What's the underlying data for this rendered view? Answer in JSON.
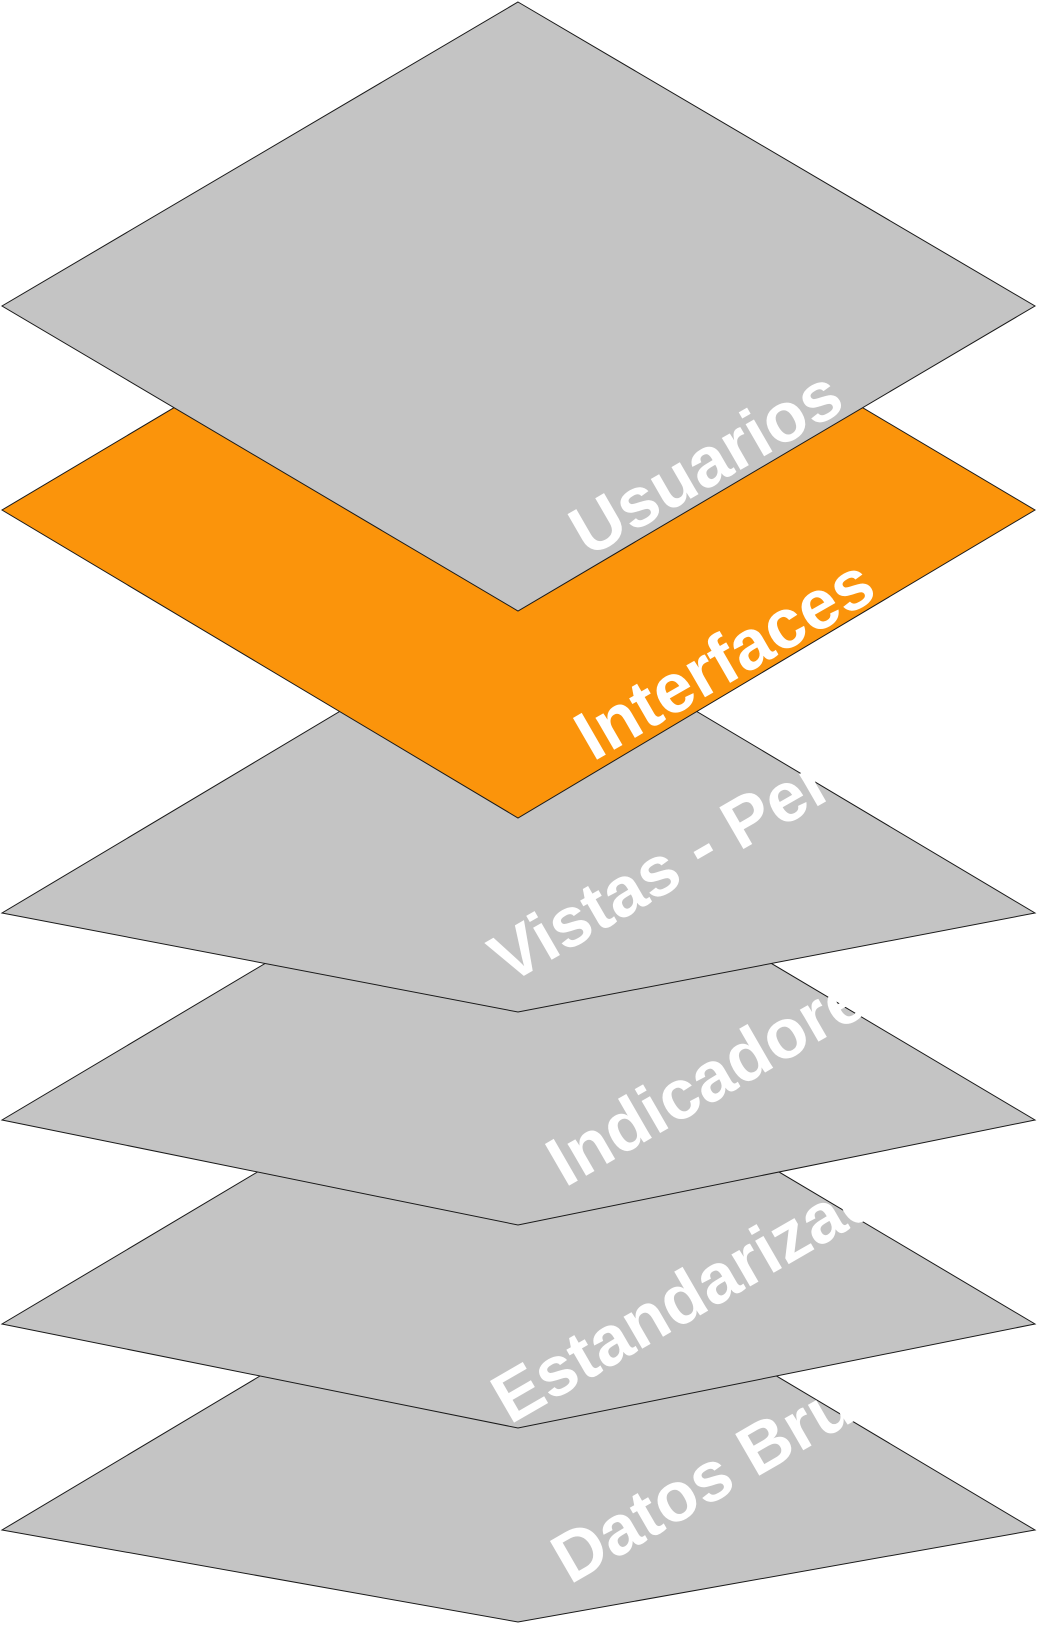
{
  "layers": [
    {
      "label": "Datos Brutos",
      "color": "#c4c4c4",
      "highlighted": false
    },
    {
      "label": "Estandarizados",
      "color": "#c4c4c4",
      "highlighted": false
    },
    {
      "label": "Indicadores",
      "color": "#c4c4c4",
      "highlighted": false
    },
    {
      "label": "Vistas - Perfiles",
      "color": "#c4c4c4",
      "highlighted": false
    },
    {
      "label": "Interfaces",
      "color": "#fb940b",
      "highlighted": true
    },
    {
      "label": "Usuarios",
      "color": "#c4c4c4",
      "highlighted": false
    }
  ]
}
